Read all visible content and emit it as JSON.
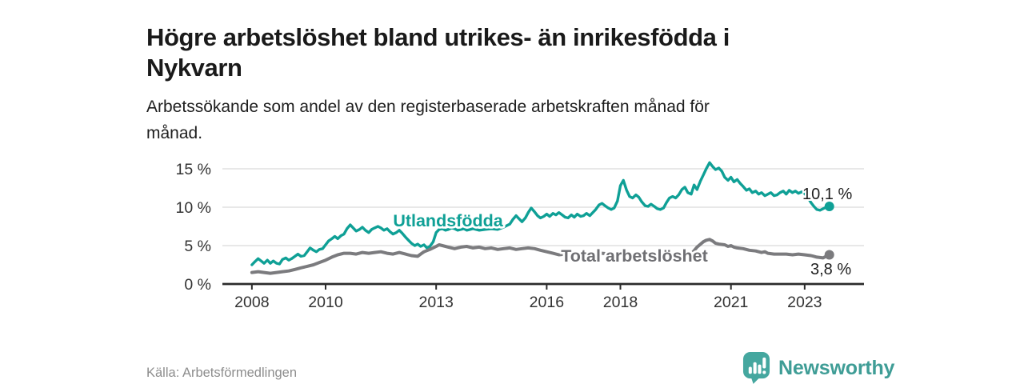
{
  "page": {
    "title_lines": [
      "Högre arbetslöshet bland utrikes- än inrikesfödda i",
      "Nykvarn"
    ],
    "subtitle_lines": [
      "Arbetssökande som andel av den registerbaserade arbetskraften månad för",
      "månad."
    ],
    "source": "Källa: Arbetsförmedlingen",
    "brand": {
      "name": "Newsworthy",
      "logo_icon": "bar-chart-exclamation-speech-bubble-icon",
      "logo_color": "#45a79f",
      "wordmark_color": "#3f9d96"
    }
  },
  "colors": {
    "background": "#ffffff",
    "title_text": "#1a1a1a",
    "subtitle_text": "#1f1f1f",
    "axis_line": "#2b2b2b",
    "gridline": "#d9d9d9",
    "tick_label": "#333333",
    "value_label": "#1f1f1f",
    "source_text": "#8d8d8d"
  },
  "chart_data": {
    "type": "line",
    "title": "Högre arbetslöshet bland utrikes- än inrikesfödda i Nykvarn",
    "subtitle": "Arbetssökande som andel av den registerbaserade arbetskraften månad för månad.",
    "xlabel": "",
    "ylabel": "",
    "grid": true,
    "legend_position": "inline-labels",
    "xlim": [
      2007.2,
      2024.61
    ],
    "ylim": [
      0,
      16.5
    ],
    "x_ticks": [
      2008,
      2010,
      2013,
      2016,
      2018,
      2021,
      2023
    ],
    "y_ticks": [
      0,
      5,
      10,
      15
    ],
    "y_tick_suffix": " %",
    "series": [
      {
        "id": "utlandsfodda",
        "name": "Utlandsfödda",
        "color": "#0fa096",
        "label_color": "#0fa096",
        "end_label": "10,1 %",
        "end_value": 10.1,
        "points": [
          [
            2008.0,
            2.5
          ],
          [
            2008.08,
            2.9
          ],
          [
            2008.17,
            3.3
          ],
          [
            2008.25,
            3.0
          ],
          [
            2008.33,
            2.7
          ],
          [
            2008.42,
            3.1
          ],
          [
            2008.5,
            2.7
          ],
          [
            2008.58,
            3.0
          ],
          [
            2008.67,
            2.7
          ],
          [
            2008.75,
            2.6
          ],
          [
            2008.83,
            3.2
          ],
          [
            2008.92,
            3.4
          ],
          [
            2009.0,
            3.1
          ],
          [
            2009.08,
            3.3
          ],
          [
            2009.17,
            3.6
          ],
          [
            2009.25,
            3.9
          ],
          [
            2009.33,
            3.6
          ],
          [
            2009.42,
            3.7
          ],
          [
            2009.5,
            4.2
          ],
          [
            2009.58,
            4.7
          ],
          [
            2009.67,
            4.4
          ],
          [
            2009.75,
            4.2
          ],
          [
            2009.83,
            4.5
          ],
          [
            2009.92,
            4.6
          ],
          [
            2010.0,
            5.1
          ],
          [
            2010.08,
            5.6
          ],
          [
            2010.17,
            5.9
          ],
          [
            2010.25,
            6.2
          ],
          [
            2010.33,
            5.9
          ],
          [
            2010.42,
            6.3
          ],
          [
            2010.5,
            6.5
          ],
          [
            2010.58,
            7.2
          ],
          [
            2010.67,
            7.7
          ],
          [
            2010.75,
            7.3
          ],
          [
            2010.83,
            6.9
          ],
          [
            2010.92,
            7.1
          ],
          [
            2011.0,
            7.4
          ],
          [
            2011.08,
            7.0
          ],
          [
            2011.17,
            6.7
          ],
          [
            2011.25,
            7.1
          ],
          [
            2011.33,
            7.3
          ],
          [
            2011.42,
            7.5
          ],
          [
            2011.5,
            7.3
          ],
          [
            2011.58,
            7.0
          ],
          [
            2011.67,
            7.2
          ],
          [
            2011.75,
            6.8
          ],
          [
            2011.83,
            6.5
          ],
          [
            2011.92,
            6.7
          ],
          [
            2012.0,
            7.0
          ],
          [
            2012.08,
            6.6
          ],
          [
            2012.17,
            6.1
          ],
          [
            2012.25,
            5.7
          ],
          [
            2012.33,
            5.3
          ],
          [
            2012.42,
            5.0
          ],
          [
            2012.5,
            5.2
          ],
          [
            2012.58,
            4.9
          ],
          [
            2012.67,
            5.1
          ],
          [
            2012.75,
            4.7
          ],
          [
            2012.83,
            4.9
          ],
          [
            2012.92,
            5.5
          ],
          [
            2013.0,
            6.7
          ],
          [
            2013.08,
            7.1
          ],
          [
            2013.17,
            7.2
          ],
          [
            2013.25,
            7.0
          ],
          [
            2013.33,
            7.1
          ],
          [
            2013.42,
            7.3
          ],
          [
            2013.5,
            7.2
          ],
          [
            2013.58,
            7.0
          ],
          [
            2013.67,
            7.1
          ],
          [
            2013.75,
            7.2
          ],
          [
            2013.83,
            7.0
          ],
          [
            2013.92,
            7.1
          ],
          [
            2014.0,
            7.2
          ],
          [
            2014.17,
            7.0
          ],
          [
            2014.33,
            7.1
          ],
          [
            2014.5,
            7.2
          ],
          [
            2014.67,
            7.1
          ],
          [
            2014.83,
            7.4
          ],
          [
            2015.0,
            7.8
          ],
          [
            2015.08,
            8.4
          ],
          [
            2015.17,
            8.9
          ],
          [
            2015.25,
            8.5
          ],
          [
            2015.33,
            8.1
          ],
          [
            2015.42,
            8.6
          ],
          [
            2015.5,
            9.3
          ],
          [
            2015.58,
            9.9
          ],
          [
            2015.67,
            9.4
          ],
          [
            2015.75,
            8.9
          ],
          [
            2015.83,
            8.6
          ],
          [
            2015.92,
            8.8
          ],
          [
            2016.0,
            9.1
          ],
          [
            2016.08,
            8.8
          ],
          [
            2016.17,
            9.2
          ],
          [
            2016.25,
            9.0
          ],
          [
            2016.33,
            9.3
          ],
          [
            2016.42,
            9.0
          ],
          [
            2016.5,
            8.7
          ],
          [
            2016.58,
            8.6
          ],
          [
            2016.67,
            9.0
          ],
          [
            2016.75,
            8.7
          ],
          [
            2016.83,
            9.1
          ],
          [
            2016.92,
            8.8
          ],
          [
            2017.0,
            8.9
          ],
          [
            2017.08,
            9.2
          ],
          [
            2017.17,
            8.9
          ],
          [
            2017.25,
            9.3
          ],
          [
            2017.33,
            9.7
          ],
          [
            2017.42,
            10.3
          ],
          [
            2017.5,
            10.5
          ],
          [
            2017.58,
            10.2
          ],
          [
            2017.67,
            9.9
          ],
          [
            2017.75,
            9.7
          ],
          [
            2017.83,
            9.9
          ],
          [
            2017.92,
            10.8
          ],
          [
            2018.0,
            12.8
          ],
          [
            2018.08,
            13.5
          ],
          [
            2018.17,
            12.2
          ],
          [
            2018.25,
            11.4
          ],
          [
            2018.33,
            11.2
          ],
          [
            2018.42,
            11.6
          ],
          [
            2018.5,
            11.3
          ],
          [
            2018.58,
            10.7
          ],
          [
            2018.67,
            10.2
          ],
          [
            2018.75,
            10.1
          ],
          [
            2018.83,
            10.4
          ],
          [
            2018.92,
            10.1
          ],
          [
            2019.0,
            9.8
          ],
          [
            2019.08,
            9.7
          ],
          [
            2019.17,
            9.9
          ],
          [
            2019.25,
            10.6
          ],
          [
            2019.33,
            11.2
          ],
          [
            2019.42,
            11.4
          ],
          [
            2019.5,
            11.2
          ],
          [
            2019.58,
            11.6
          ],
          [
            2019.67,
            12.3
          ],
          [
            2019.75,
            12.6
          ],
          [
            2019.83,
            11.9
          ],
          [
            2019.92,
            11.7
          ],
          [
            2020.0,
            12.9
          ],
          [
            2020.08,
            12.3
          ],
          [
            2020.17,
            13.4
          ],
          [
            2020.25,
            14.2
          ],
          [
            2020.33,
            15.0
          ],
          [
            2020.42,
            15.8
          ],
          [
            2020.5,
            15.3
          ],
          [
            2020.58,
            14.9
          ],
          [
            2020.67,
            15.1
          ],
          [
            2020.75,
            14.7
          ],
          [
            2020.83,
            13.9
          ],
          [
            2020.92,
            13.5
          ],
          [
            2021.0,
            13.9
          ],
          [
            2021.08,
            13.3
          ],
          [
            2021.17,
            13.6
          ],
          [
            2021.25,
            13.1
          ],
          [
            2021.33,
            12.7
          ],
          [
            2021.42,
            12.2
          ],
          [
            2021.5,
            12.4
          ],
          [
            2021.58,
            11.9
          ],
          [
            2021.67,
            12.1
          ],
          [
            2021.75,
            11.7
          ],
          [
            2021.83,
            11.9
          ],
          [
            2021.92,
            11.5
          ],
          [
            2022.0,
            11.7
          ],
          [
            2022.08,
            11.9
          ],
          [
            2022.17,
            11.5
          ],
          [
            2022.25,
            11.6
          ],
          [
            2022.33,
            11.9
          ],
          [
            2022.42,
            12.1
          ],
          [
            2022.5,
            11.7
          ],
          [
            2022.58,
            12.2
          ],
          [
            2022.67,
            11.9
          ],
          [
            2022.75,
            12.1
          ],
          [
            2022.83,
            11.8
          ],
          [
            2022.92,
            12.0
          ],
          [
            2023.0,
            11.8
          ],
          [
            2023.08,
            11.3
          ],
          [
            2023.17,
            10.6
          ],
          [
            2023.25,
            10.1
          ],
          [
            2023.33,
            9.7
          ],
          [
            2023.42,
            9.6
          ],
          [
            2023.5,
            9.8
          ],
          [
            2023.58,
            10.0
          ],
          [
            2023.67,
            10.1
          ]
        ]
      },
      {
        "id": "total",
        "name": "Total arbetslöshet",
        "color": "#7b7b7e",
        "label_color": "#6f6f73",
        "end_label": "3,8 %",
        "end_value": 3.8,
        "points": [
          [
            2008.0,
            1.5
          ],
          [
            2008.17,
            1.6
          ],
          [
            2008.33,
            1.5
          ],
          [
            2008.5,
            1.4
          ],
          [
            2008.67,
            1.5
          ],
          [
            2008.83,
            1.6
          ],
          [
            2009.0,
            1.7
          ],
          [
            2009.17,
            1.9
          ],
          [
            2009.33,
            2.1
          ],
          [
            2009.5,
            2.3
          ],
          [
            2009.67,
            2.5
          ],
          [
            2009.83,
            2.8
          ],
          [
            2010.0,
            3.1
          ],
          [
            2010.17,
            3.5
          ],
          [
            2010.33,
            3.8
          ],
          [
            2010.5,
            4.0
          ],
          [
            2010.67,
            4.0
          ],
          [
            2010.83,
            3.9
          ],
          [
            2011.0,
            4.1
          ],
          [
            2011.17,
            4.0
          ],
          [
            2011.33,
            4.1
          ],
          [
            2011.5,
            4.2
          ],
          [
            2011.67,
            4.0
          ],
          [
            2011.83,
            3.9
          ],
          [
            2012.0,
            4.1
          ],
          [
            2012.17,
            3.9
          ],
          [
            2012.33,
            3.7
          ],
          [
            2012.5,
            3.6
          ],
          [
            2012.58,
            3.9
          ],
          [
            2012.67,
            4.2
          ],
          [
            2012.83,
            4.5
          ],
          [
            2013.0,
            4.9
          ],
          [
            2013.08,
            5.1
          ],
          [
            2013.17,
            5.0
          ],
          [
            2013.33,
            4.8
          ],
          [
            2013.5,
            4.6
          ],
          [
            2013.67,
            4.8
          ],
          [
            2013.83,
            4.9
          ],
          [
            2014.0,
            4.7
          ],
          [
            2014.17,
            4.8
          ],
          [
            2014.33,
            4.6
          ],
          [
            2014.5,
            4.7
          ],
          [
            2014.67,
            4.5
          ],
          [
            2014.83,
            4.6
          ],
          [
            2015.0,
            4.7
          ],
          [
            2015.17,
            4.5
          ],
          [
            2015.33,
            4.6
          ],
          [
            2015.5,
            4.7
          ],
          [
            2015.67,
            4.6
          ],
          [
            2015.83,
            4.4
          ],
          [
            2016.0,
            4.2
          ],
          [
            2016.17,
            4.0
          ],
          [
            2016.33,
            3.8
          ],
          [
            2016.5,
            3.9
          ],
          [
            2016.67,
            4.0
          ],
          [
            2016.83,
            3.9
          ],
          [
            2017.0,
            4.0
          ],
          [
            2017.25,
            3.9
          ],
          [
            2017.5,
            4.0
          ],
          [
            2017.75,
            3.9
          ],
          [
            2018.0,
            4.0
          ],
          [
            2018.25,
            3.9
          ],
          [
            2018.5,
            3.8
          ],
          [
            2018.75,
            3.7
          ],
          [
            2019.0,
            3.6
          ],
          [
            2019.25,
            3.7
          ],
          [
            2019.5,
            3.6
          ],
          [
            2019.75,
            3.7
          ],
          [
            2019.92,
            3.9
          ],
          [
            2020.08,
            4.8
          ],
          [
            2020.25,
            5.5
          ],
          [
            2020.33,
            5.7
          ],
          [
            2020.42,
            5.8
          ],
          [
            2020.5,
            5.6
          ],
          [
            2020.58,
            5.3
          ],
          [
            2020.67,
            5.2
          ],
          [
            2020.83,
            5.1
          ],
          [
            2020.92,
            4.9
          ],
          [
            2021.0,
            5.0
          ],
          [
            2021.08,
            4.8
          ],
          [
            2021.17,
            4.7
          ],
          [
            2021.33,
            4.6
          ],
          [
            2021.5,
            4.4
          ],
          [
            2021.67,
            4.3
          ],
          [
            2021.83,
            4.1
          ],
          [
            2021.92,
            4.2
          ],
          [
            2022.0,
            4.0
          ],
          [
            2022.17,
            3.9
          ],
          [
            2022.33,
            3.9
          ],
          [
            2022.5,
            3.9
          ],
          [
            2022.67,
            3.8
          ],
          [
            2022.83,
            3.9
          ],
          [
            2023.0,
            3.8
          ],
          [
            2023.17,
            3.7
          ],
          [
            2023.33,
            3.5
          ],
          [
            2023.5,
            3.4
          ],
          [
            2023.58,
            3.6
          ],
          [
            2023.67,
            3.8
          ]
        ]
      }
    ]
  }
}
